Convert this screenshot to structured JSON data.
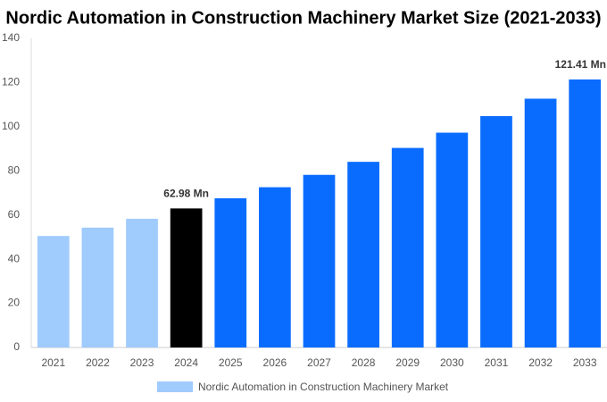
{
  "chart_data": {
    "type": "bar",
    "title": "Nordic Automation in Construction Machinery Market Size (2021-2033)",
    "categories": [
      "2021",
      "2022",
      "2023",
      "2024",
      "2025",
      "2026",
      "2027",
      "2028",
      "2029",
      "2030",
      "2031",
      "2032",
      "2033"
    ],
    "series": [
      {
        "name": "Nordic Automation in Construction Machinery Market",
        "color": "#a0cbfd",
        "values": [
          50.5,
          54.3,
          58.3,
          62.98,
          67.6,
          72.6,
          78.2,
          84.1,
          90.4,
          97.3,
          104.8,
          112.7,
          121.41
        ],
        "value_labels": [
          null,
          null,
          null,
          "62.98 Mn",
          null,
          null,
          null,
          null,
          null,
          null,
          null,
          null,
          "121.41 Mn"
        ],
        "colors": [
          "#a0cbfd",
          "#a0cbfd",
          "#a0cbfd",
          "#000000",
          "#0a6cff",
          "#0a6cff",
          "#0a6cff",
          "#0a6cff",
          "#0a6cff",
          "#0a6cff",
          "#0a6cff",
          "#0a6cff",
          "#0a6cff"
        ]
      }
    ],
    "ylim": [
      0,
      140
    ],
    "yticks": [
      0,
      20,
      40,
      60,
      80,
      100,
      120,
      140
    ],
    "grid": false
  }
}
